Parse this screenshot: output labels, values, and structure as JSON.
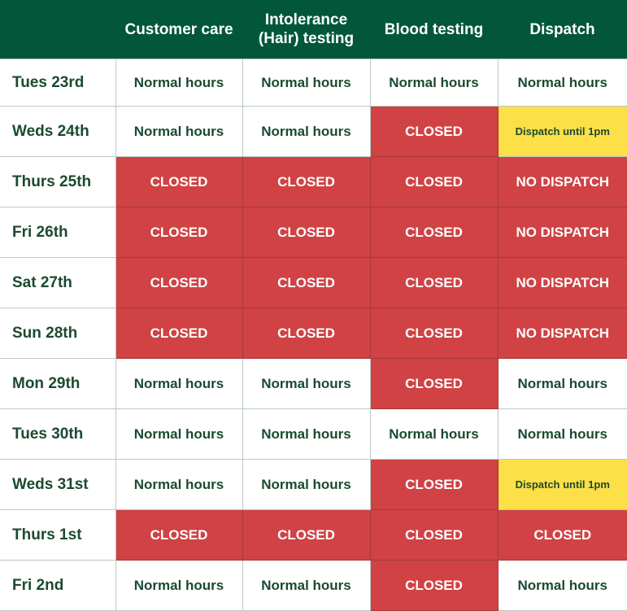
{
  "headers": [
    "",
    "Customer care",
    "Intolerance (Hair) testing",
    "Blood testing",
    "Dispatch"
  ],
  "colors": {
    "header": "#02573b",
    "closed": "#d04244",
    "partial": "#fddf47",
    "text": "#1b4a30"
  },
  "rows": [
    {
      "day": "Tues 23rd",
      "cells": [
        "Normal hours",
        "Normal hours",
        "Normal hours",
        "Normal hours"
      ]
    },
    {
      "day": "Weds 24th",
      "cells": [
        "Normal hours",
        "Normal hours",
        "CLOSED",
        "Dispatch until 1pm"
      ]
    },
    {
      "day": "Thurs 25th",
      "cells": [
        "CLOSED",
        "CLOSED",
        "CLOSED",
        "NO DISPATCH"
      ]
    },
    {
      "day": "Fri 26th",
      "cells": [
        "CLOSED",
        "CLOSED",
        "CLOSED",
        "NO DISPATCH"
      ]
    },
    {
      "day": "Sat 27th",
      "cells": [
        "CLOSED",
        "CLOSED",
        "CLOSED",
        "NO DISPATCH"
      ]
    },
    {
      "day": "Sun 28th",
      "cells": [
        "CLOSED",
        "CLOSED",
        "CLOSED",
        "NO DISPATCH"
      ]
    },
    {
      "day": "Mon 29th",
      "cells": [
        "Normal hours",
        "Normal hours",
        "CLOSED",
        "Normal hours"
      ]
    },
    {
      "day": "Tues 30th",
      "cells": [
        "Normal hours",
        "Normal hours",
        "Normal hours",
        "Normal hours"
      ]
    },
    {
      "day": "Weds 31st",
      "cells": [
        "Normal hours",
        "Normal hours",
        "CLOSED",
        "Dispatch until 1pm"
      ]
    },
    {
      "day": "Thurs 1st",
      "cells": [
        "CLOSED",
        "CLOSED",
        "CLOSED",
        "CLOSED"
      ]
    },
    {
      "day": "Fri 2nd",
      "cells": [
        "Normal hours",
        "Normal hours",
        "CLOSED",
        "Normal hours"
      ]
    }
  ]
}
